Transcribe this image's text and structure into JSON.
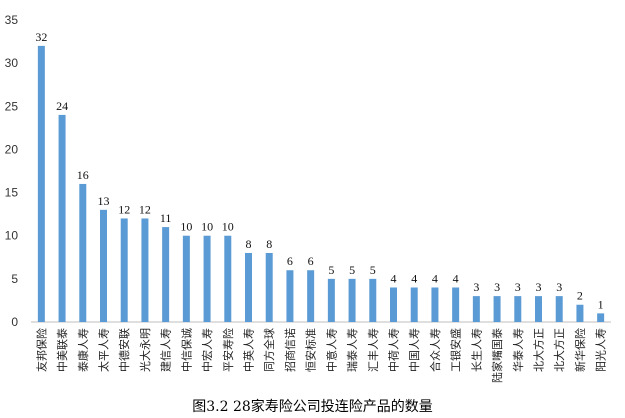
{
  "caption": "图3.2  28家寿险公司投连险产品的数量",
  "colors": {
    "bar": "#5b9bd5",
    "axis": "#bfbfbf",
    "text": "#333333"
  },
  "chart_data": {
    "type": "bar",
    "categories": [
      "友邦保险",
      "中美联泰",
      "泰康人寿",
      "太平人寿",
      "中德安联",
      "光大永明",
      "建信人寿",
      "中信保诚",
      "中宏人寿",
      "平安寿险",
      "中英人寿",
      "同方全球",
      "招商信诺",
      "恒安标准",
      "中意人寿",
      "瑞泰人寿",
      "汇丰人寿",
      "中荷人寿",
      "中国人寿",
      "合众人寿",
      "工银安盛",
      "长生人寿",
      "陆家嘴国泰",
      "华泰人寿",
      "北大方正",
      "北大方正",
      "新华保险",
      "阳光人寿"
    ],
    "values": [
      32,
      24,
      16,
      13,
      12,
      12,
      11,
      10,
      10,
      10,
      8,
      8,
      6,
      6,
      5,
      5,
      5,
      4,
      4,
      4,
      4,
      3,
      3,
      3,
      3,
      3,
      2,
      1
    ],
    "ylim": [
      0,
      35
    ],
    "yticks": [
      0,
      5,
      10,
      15,
      20,
      25,
      30,
      35
    ],
    "grid": false,
    "legend": "none"
  }
}
